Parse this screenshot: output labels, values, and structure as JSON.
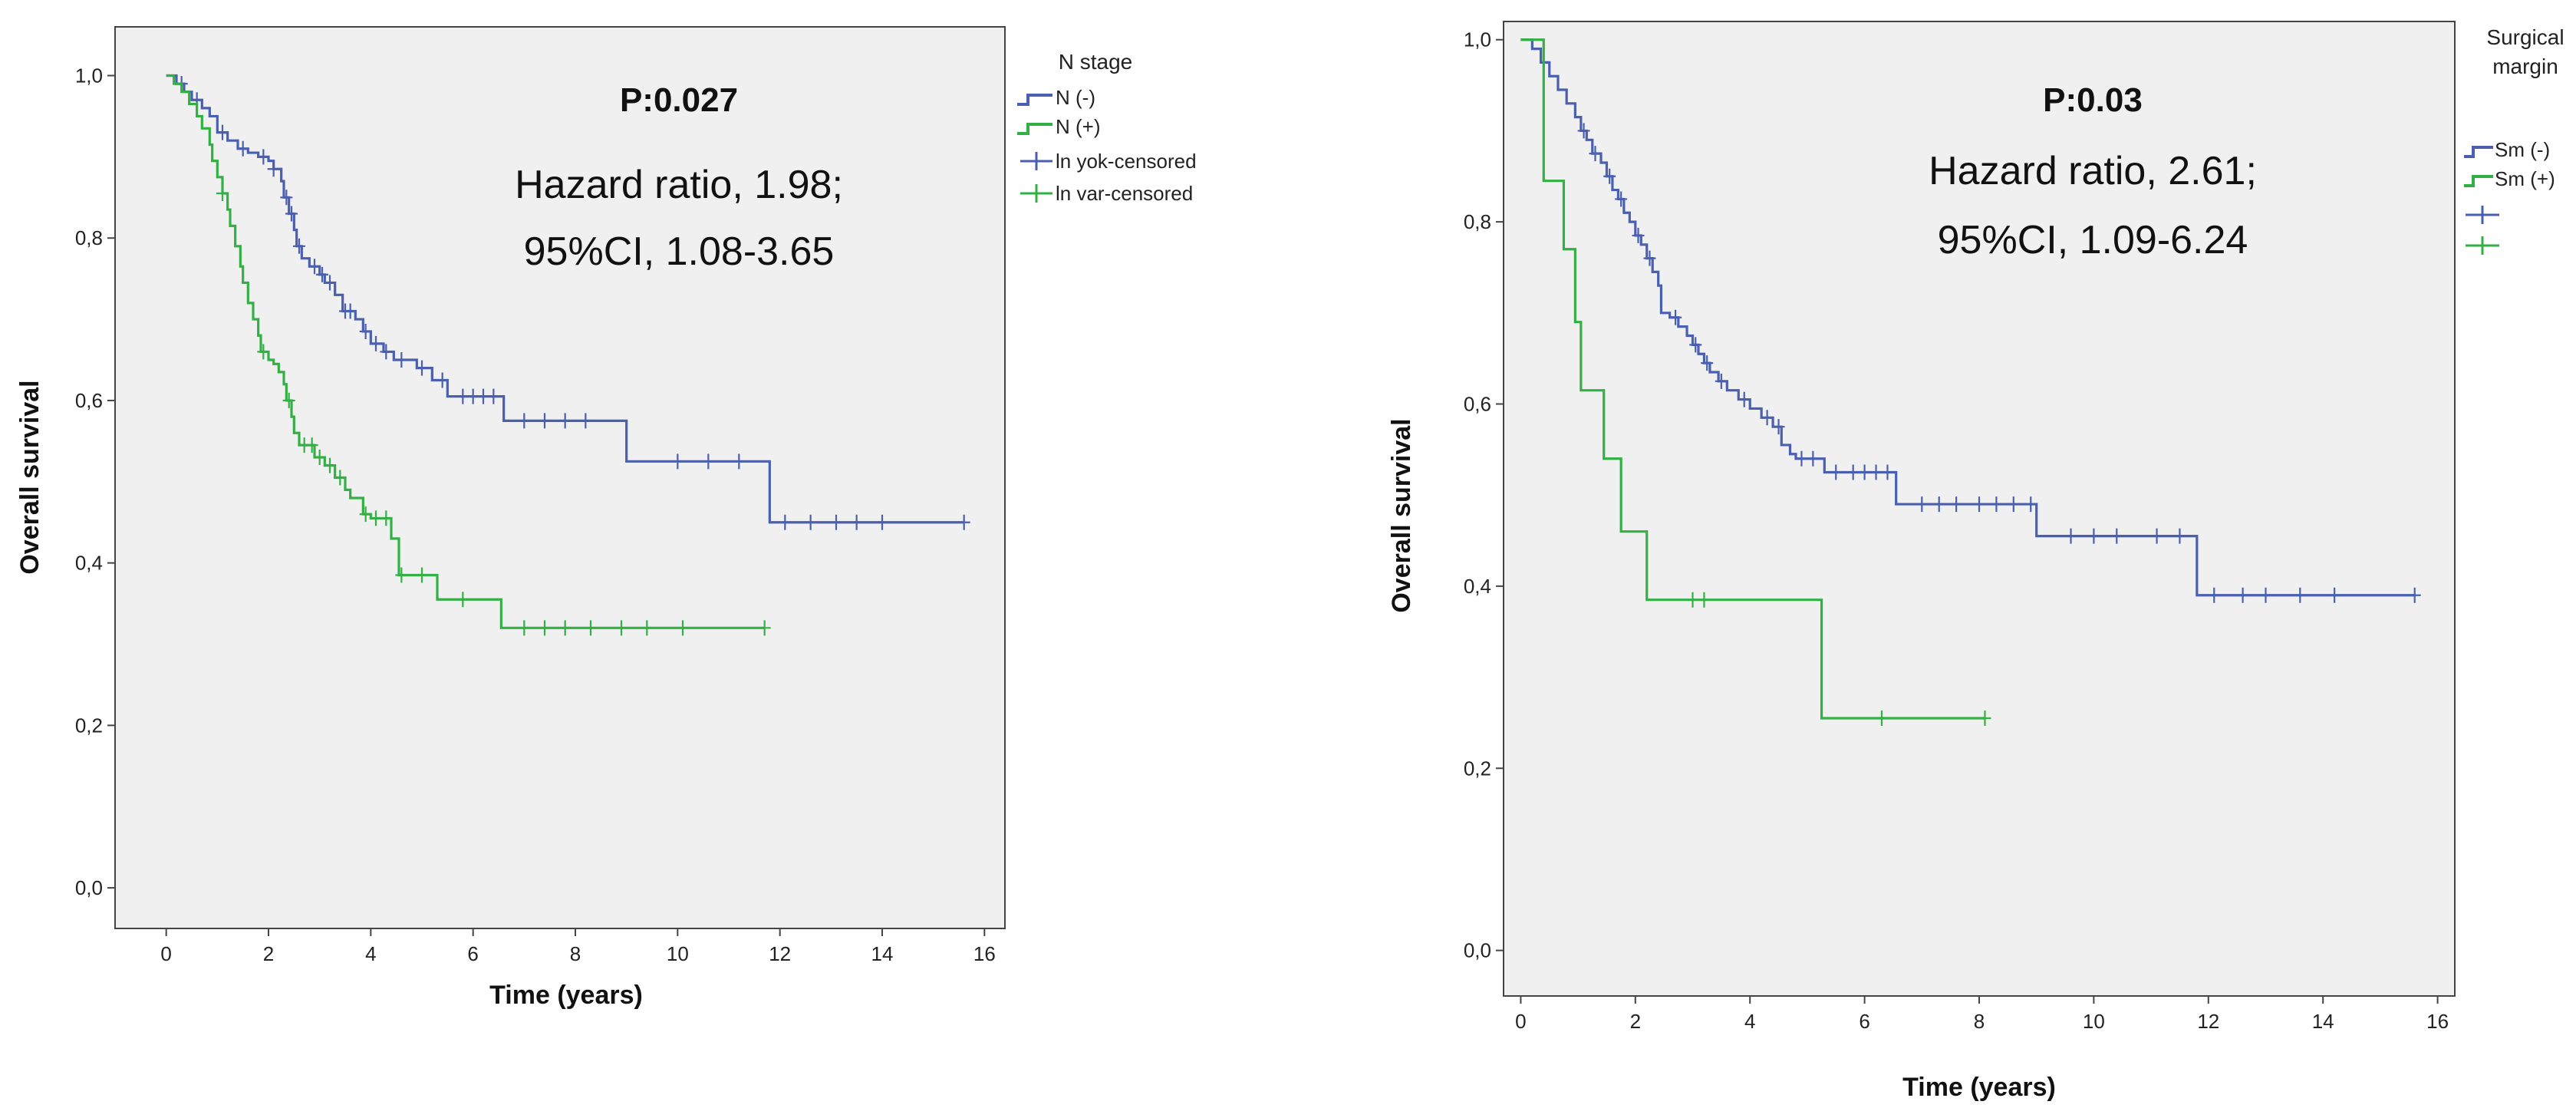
{
  "chart_data": [
    {
      "type": "line",
      "subtype": "kaplan-meier",
      "xlabel": "Time (years)",
      "ylabel": "Overall survival",
      "xlim": [
        -1,
        16.4
      ],
      "ylim": [
        -0.05,
        1.06
      ],
      "xticks": [
        0,
        2,
        4,
        6,
        8,
        10,
        12,
        14,
        16
      ],
      "xtick_labels": [
        "0",
        "2",
        "4",
        "6",
        "8",
        "10",
        "12",
        "14",
        "16"
      ],
      "yticks": [
        0,
        0.2,
        0.4,
        0.6,
        0.8,
        1.0
      ],
      "ytick_labels": [
        "0,0",
        "0,2",
        "0,4",
        "0,6",
        "0,8",
        "1,0"
      ],
      "annotations": [
        "P:0.027",
        "Hazard ratio, 1.98;",
        "95%CI, 1.08-3.65"
      ],
      "legend_title": "N stage",
      "legend_labels": [
        "N (-)",
        "N (+)",
        "ln yok-censored",
        "ln var-censored"
      ],
      "series": [
        {
          "name": "N (-)",
          "color": "#4a5fb0",
          "steps": [
            [
              0,
              1.0
            ],
            [
              0.2,
              0.99
            ],
            [
              0.35,
              0.98
            ],
            [
              0.5,
              0.97
            ],
            [
              0.7,
              0.96
            ],
            [
              0.85,
              0.95
            ],
            [
              1.0,
              0.93
            ],
            [
              1.2,
              0.92
            ],
            [
              1.4,
              0.91
            ],
            [
              1.6,
              0.905
            ],
            [
              1.8,
              0.9
            ],
            [
              2.0,
              0.895
            ],
            [
              2.1,
              0.885
            ],
            [
              2.25,
              0.87
            ],
            [
              2.3,
              0.85
            ],
            [
              2.4,
              0.83
            ],
            [
              2.5,
              0.81
            ],
            [
              2.55,
              0.79
            ],
            [
              2.65,
              0.775
            ],
            [
              2.8,
              0.765
            ],
            [
              3.0,
              0.755
            ],
            [
              3.1,
              0.745
            ],
            [
              3.3,
              0.73
            ],
            [
              3.45,
              0.71
            ],
            [
              3.7,
              0.7
            ],
            [
              3.85,
              0.685
            ],
            [
              4.0,
              0.67
            ],
            [
              4.25,
              0.66
            ],
            [
              4.45,
              0.65
            ],
            [
              4.9,
              0.64
            ],
            [
              5.2,
              0.625
            ],
            [
              5.5,
              0.605
            ],
            [
              6.6,
              0.575
            ],
            [
              9.0,
              0.525
            ],
            [
              11.8,
              0.45
            ],
            [
              15.6,
              0.45
            ]
          ],
          "censor_x": [
            0.3,
            0.6,
            1.1,
            1.5,
            1.9,
            2.1,
            2.35,
            2.45,
            2.6,
            2.9,
            3.05,
            3.2,
            3.5,
            3.6,
            3.9,
            4.1,
            4.3,
            4.6,
            5.0,
            5.4,
            5.8,
            6.0,
            6.2,
            6.4,
            7.0,
            7.4,
            7.8,
            8.2,
            10.0,
            10.6,
            11.2,
            12.1,
            12.6,
            13.1,
            13.5,
            14.0,
            15.6
          ]
        },
        {
          "name": "N (+)",
          "color": "#33b044",
          "steps": [
            [
              0,
              1.0
            ],
            [
              0.15,
              0.99
            ],
            [
              0.3,
              0.98
            ],
            [
              0.45,
              0.965
            ],
            [
              0.6,
              0.95
            ],
            [
              0.7,
              0.935
            ],
            [
              0.85,
              0.915
            ],
            [
              0.9,
              0.895
            ],
            [
              1.0,
              0.875
            ],
            [
              1.1,
              0.855
            ],
            [
              1.2,
              0.835
            ],
            [
              1.25,
              0.815
            ],
            [
              1.35,
              0.79
            ],
            [
              1.45,
              0.765
            ],
            [
              1.5,
              0.745
            ],
            [
              1.6,
              0.72
            ],
            [
              1.7,
              0.7
            ],
            [
              1.8,
              0.68
            ],
            [
              1.85,
              0.66
            ],
            [
              2.0,
              0.65
            ],
            [
              2.1,
              0.645
            ],
            [
              2.2,
              0.635
            ],
            [
              2.3,
              0.62
            ],
            [
              2.35,
              0.6
            ],
            [
              2.45,
              0.58
            ],
            [
              2.5,
              0.56
            ],
            [
              2.6,
              0.545
            ],
            [
              2.9,
              0.53
            ],
            [
              3.1,
              0.52
            ],
            [
              3.3,
              0.505
            ],
            [
              3.5,
              0.49
            ],
            [
              3.6,
              0.48
            ],
            [
              3.85,
              0.46
            ],
            [
              4.0,
              0.455
            ],
            [
              4.4,
              0.43
            ],
            [
              4.55,
              0.385
            ],
            [
              5.3,
              0.355
            ],
            [
              6.55,
              0.32
            ],
            [
              11.7,
              0.32
            ]
          ],
          "censor_x": [
            1.1,
            1.9,
            2.4,
            2.7,
            2.85,
            3.0,
            3.2,
            3.4,
            3.9,
            4.1,
            4.3,
            4.6,
            5.0,
            5.8,
            7.0,
            7.4,
            7.8,
            8.3,
            8.9,
            9.4,
            10.1,
            11.7
          ]
        }
      ]
    },
    {
      "type": "line",
      "subtype": "kaplan-meier",
      "xlabel": "Time (years)",
      "ylabel": "Overall survival",
      "xlim": [
        -0.3,
        16.3
      ],
      "ylim": [
        -0.05,
        1.02
      ],
      "xticks": [
        0,
        2,
        4,
        6,
        8,
        10,
        12,
        14,
        16
      ],
      "xtick_labels": [
        "0",
        "2",
        "4",
        "6",
        "8",
        "10",
        "12",
        "14",
        "16"
      ],
      "yticks": [
        0,
        0.2,
        0.4,
        0.6,
        0.8,
        1.0
      ],
      "ytick_labels": [
        "0,0",
        "0,2",
        "0,4",
        "0,6",
        "0,8",
        "1,0"
      ],
      "annotations": [
        "P:0.03",
        "Hazard ratio, 2.61;",
        "95%CI, 1.09-6.24"
      ],
      "legend_title": [
        "Surgical",
        "margin"
      ],
      "legend_labels": [
        "Sm (-)",
        "Sm (+)",
        "",
        ""
      ],
      "series": [
        {
          "name": "Sm (-)",
          "color": "#4a5fb0",
          "steps": [
            [
              0,
              1.0
            ],
            [
              0.2,
              0.99
            ],
            [
              0.35,
              0.975
            ],
            [
              0.5,
              0.96
            ],
            [
              0.65,
              0.945
            ],
            [
              0.8,
              0.93
            ],
            [
              0.95,
              0.915
            ],
            [
              1.05,
              0.9
            ],
            [
              1.15,
              0.89
            ],
            [
              1.25,
              0.875
            ],
            [
              1.4,
              0.865
            ],
            [
              1.5,
              0.85
            ],
            [
              1.6,
              0.835
            ],
            [
              1.7,
              0.825
            ],
            [
              1.8,
              0.81
            ],
            [
              1.9,
              0.8
            ],
            [
              2.0,
              0.785
            ],
            [
              2.1,
              0.775
            ],
            [
              2.2,
              0.76
            ],
            [
              2.3,
              0.745
            ],
            [
              2.4,
              0.73
            ],
            [
              2.45,
              0.7
            ],
            [
              2.6,
              0.695
            ],
            [
              2.75,
              0.685
            ],
            [
              2.9,
              0.675
            ],
            [
              3.0,
              0.665
            ],
            [
              3.1,
              0.655
            ],
            [
              3.2,
              0.645
            ],
            [
              3.3,
              0.635
            ],
            [
              3.45,
              0.625
            ],
            [
              3.6,
              0.615
            ],
            [
              3.8,
              0.605
            ],
            [
              4.0,
              0.595
            ],
            [
              4.2,
              0.585
            ],
            [
              4.4,
              0.575
            ],
            [
              4.55,
              0.555
            ],
            [
              4.7,
              0.545
            ],
            [
              4.8,
              0.54
            ],
            [
              5.3,
              0.525
            ],
            [
              6.55,
              0.49
            ],
            [
              9.0,
              0.455
            ],
            [
              11.8,
              0.39
            ],
            [
              15.6,
              0.39
            ]
          ],
          "censor_x": [
            1.1,
            1.3,
            1.55,
            1.75,
            2.05,
            2.25,
            2.7,
            3.05,
            3.25,
            3.5,
            3.9,
            4.3,
            4.5,
            4.9,
            5.1,
            5.5,
            5.8,
            6.0,
            6.2,
            6.4,
            7.0,
            7.3,
            7.6,
            8.0,
            8.3,
            8.6,
            8.9,
            9.6,
            10.0,
            10.4,
            11.1,
            11.5,
            12.1,
            12.6,
            13.0,
            13.6,
            14.2,
            15.6
          ]
        },
        {
          "name": "Sm (+)",
          "color": "#33b044",
          "steps": [
            [
              0,
              1.0
            ],
            [
              0.4,
              0.845
            ],
            [
              0.75,
              0.77
            ],
            [
              0.95,
              0.69
            ],
            [
              1.05,
              0.615
            ],
            [
              1.45,
              0.54
            ],
            [
              1.75,
              0.46
            ],
            [
              2.2,
              0.385
            ],
            [
              5.25,
              0.255
            ],
            [
              8.1,
              0.255
            ]
          ],
          "censor_x": [
            3.0,
            3.2,
            6.3,
            8.1
          ]
        }
      ]
    }
  ]
}
